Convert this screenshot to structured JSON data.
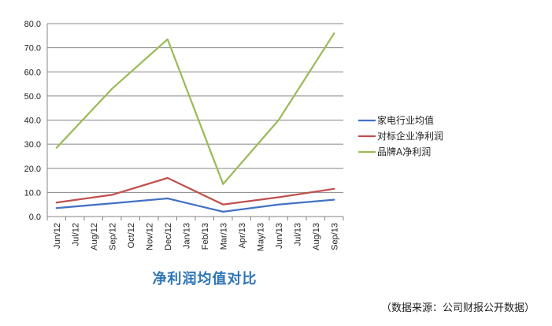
{
  "chart_data": {
    "type": "line",
    "title": "净利润均值对比",
    "categories": [
      "Jun/12",
      "Jul/12",
      "Aug/12",
      "Sep/12",
      "Oct/12",
      "Nov/12",
      "Dec/12",
      "Jan/13",
      "Feb/13",
      "Mar/13",
      "Apr/13",
      "May/13",
      "Jun/13",
      "Jul/13",
      "Aug/13",
      "Sep/13"
    ],
    "y_ticks": [
      "0.0",
      "10.0",
      "20.0",
      "30.0",
      "40.0",
      "50.0",
      "60.0",
      "70.0",
      "80.0"
    ],
    "ylim": [
      0,
      80
    ],
    "grid": true,
    "legend_position": "right",
    "series": [
      {
        "name": "家电行业均值",
        "color": "#4472c4",
        "x": [
          "Jun/12",
          "Sep/12",
          "Dec/12",
          "Mar/13",
          "Jun/13",
          "Sep/13"
        ],
        "values": [
          3.5,
          5.5,
          7.5,
          2.0,
          5.0,
          7.0
        ]
      },
      {
        "name": "对标企业净利润",
        "color": "#c0504d",
        "x": [
          "Jun/12",
          "Sep/12",
          "Dec/12",
          "Mar/13",
          "Jun/13",
          "Sep/13"
        ],
        "values": [
          5.8,
          9.0,
          16.0,
          5.0,
          8.0,
          11.5
        ]
      },
      {
        "name": "品牌A净利润",
        "color": "#9bbb59",
        "x": [
          "Jun/12",
          "Sep/12",
          "Dec/12",
          "Mar/13",
          "Jun/13",
          "Sep/13"
        ],
        "values": [
          28.5,
          53.0,
          73.5,
          13.5,
          40.0,
          76.0
        ]
      }
    ]
  },
  "source_note": "（数据来源：公司财报公开数据）"
}
